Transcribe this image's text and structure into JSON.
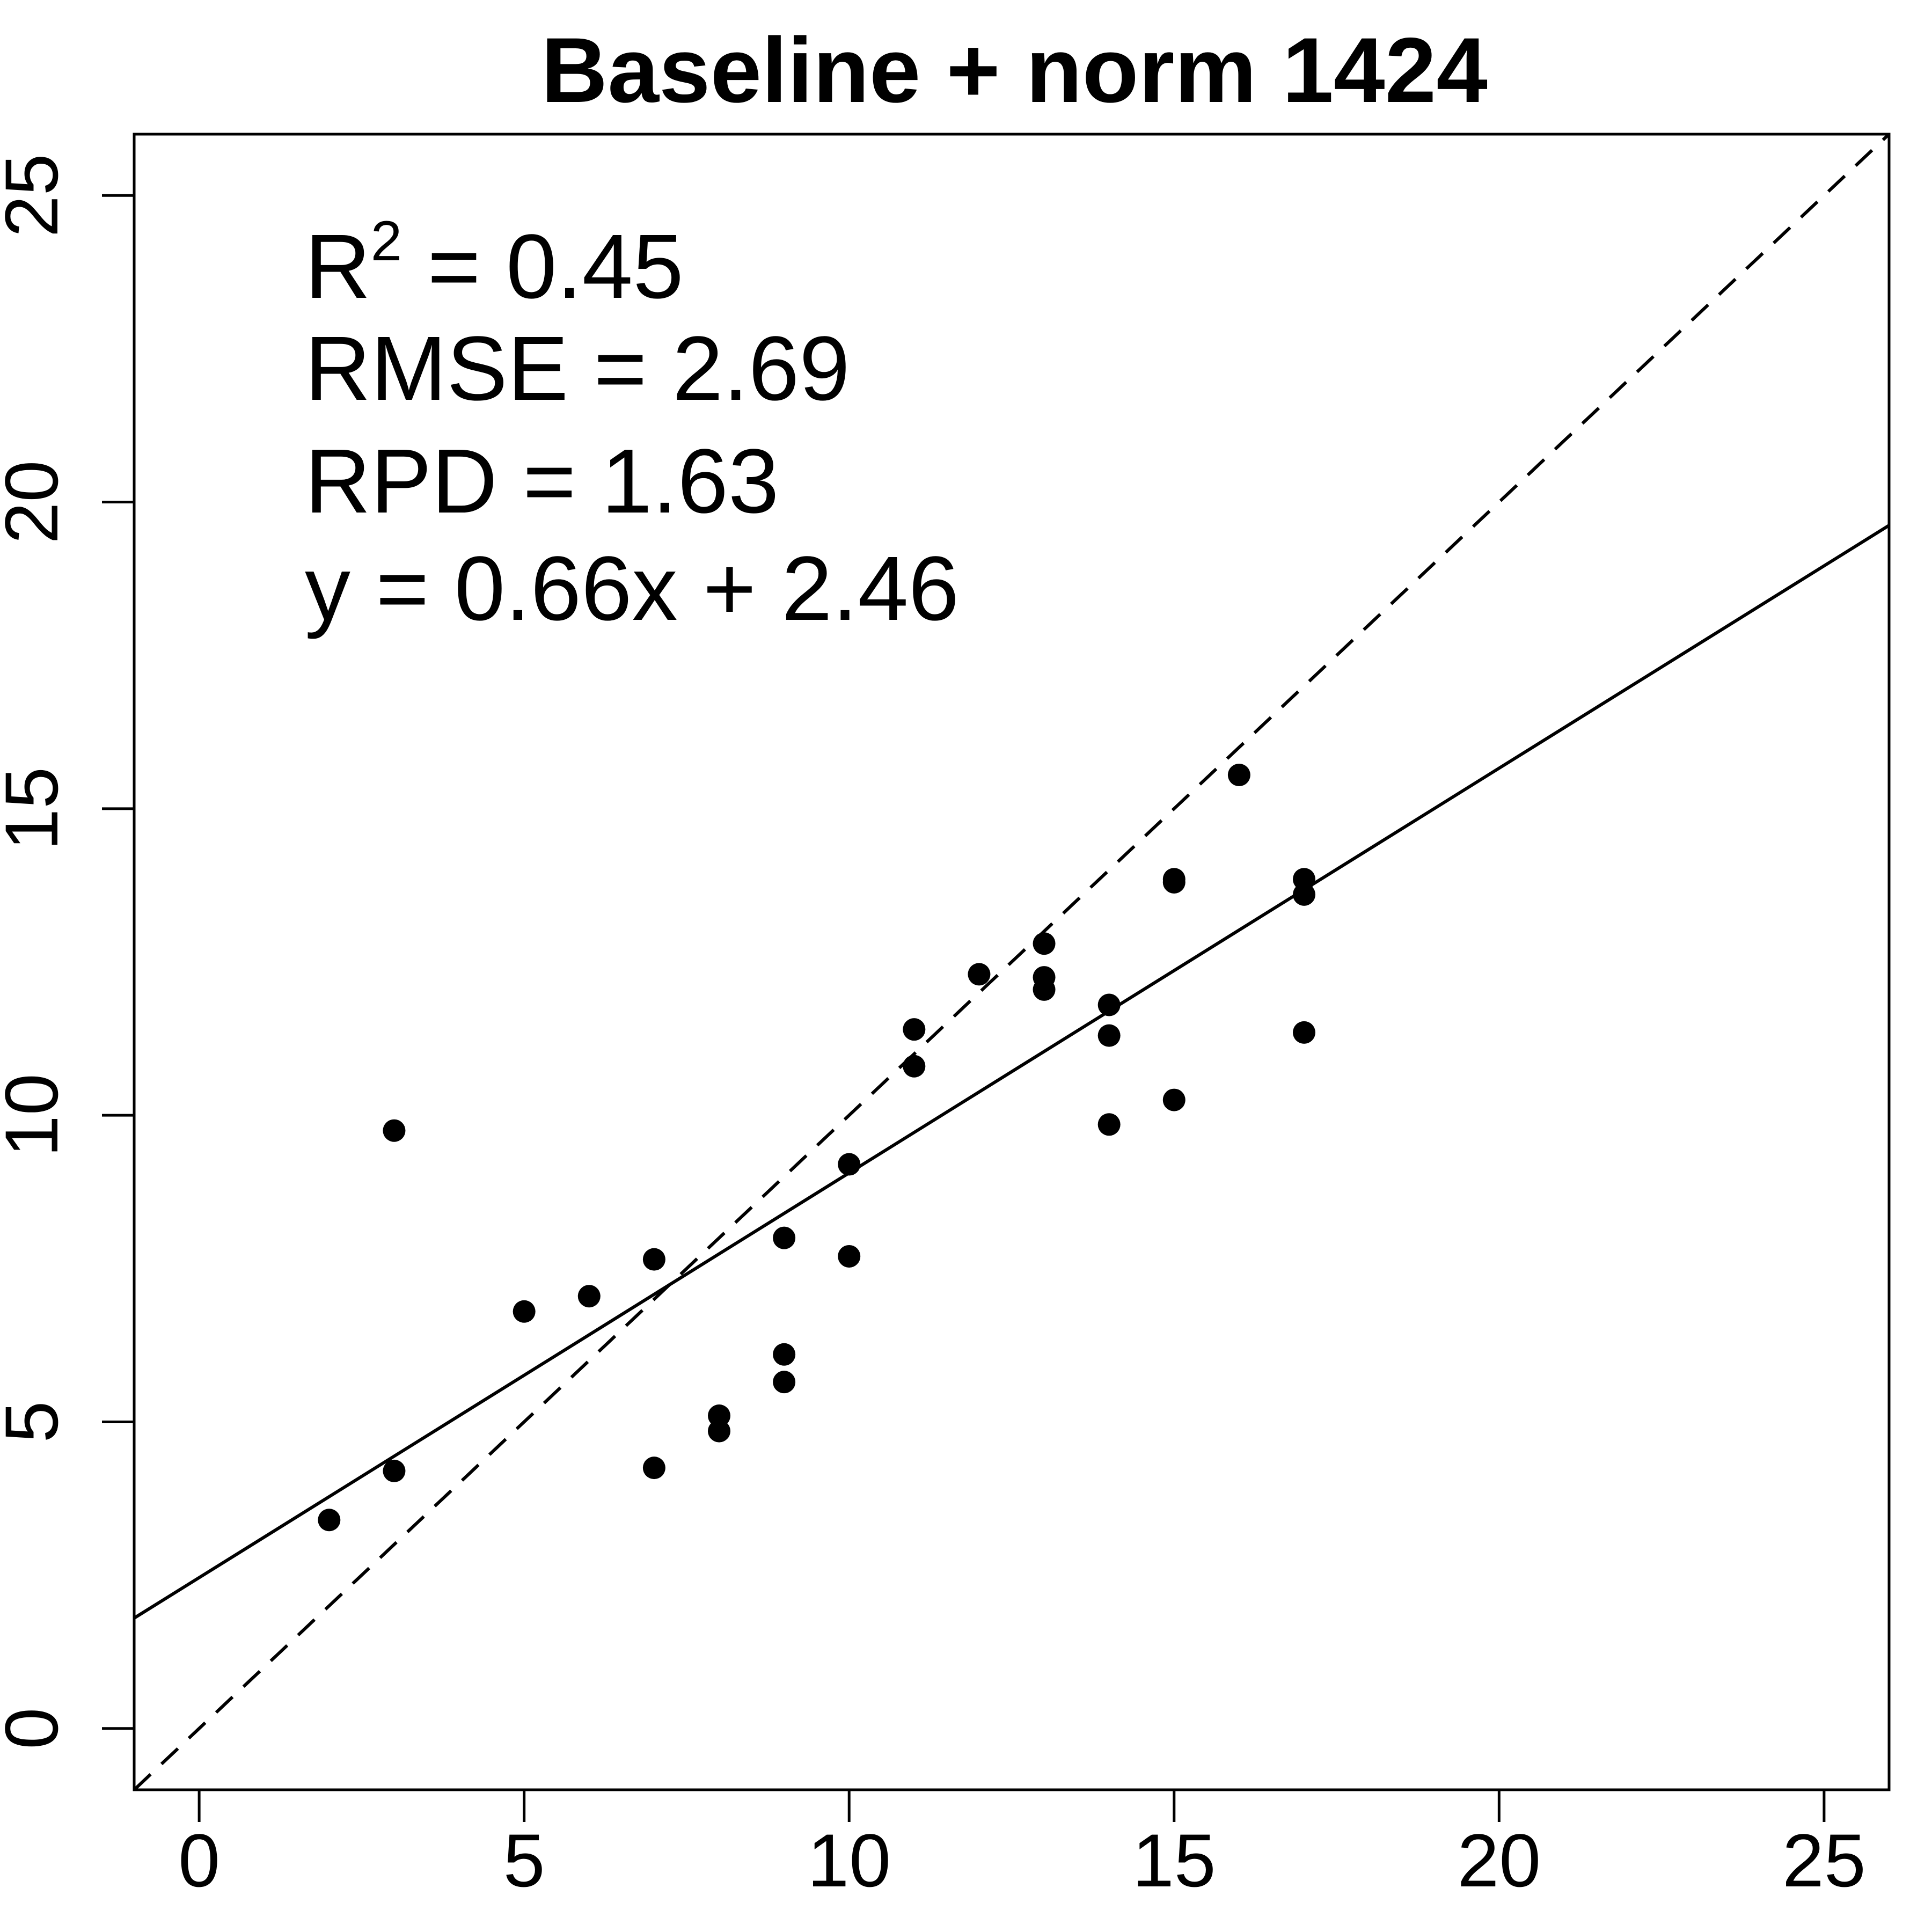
{
  "chart_data": {
    "type": "scatter",
    "title": "Baseline + norm 1424",
    "xlabel": "",
    "ylabel": "",
    "xlim": [
      -1,
      26
    ],
    "ylim": [
      -1,
      26
    ],
    "x_ticks": [
      0,
      5,
      10,
      15,
      20,
      25
    ],
    "y_ticks": [
      0,
      5,
      10,
      15,
      20,
      25
    ],
    "grid": false,
    "points": [
      {
        "x": 2,
        "y": 3.4
      },
      {
        "x": 3,
        "y": 9.75
      },
      {
        "x": 3,
        "y": 4.2
      },
      {
        "x": 5,
        "y": 6.8
      },
      {
        "x": 6,
        "y": 7.05
      },
      {
        "x": 7,
        "y": 7.65
      },
      {
        "x": 7,
        "y": 4.25
      },
      {
        "x": 8,
        "y": 5.1
      },
      {
        "x": 8,
        "y": 4.85
      },
      {
        "x": 9,
        "y": 8.0
      },
      {
        "x": 9,
        "y": 6.1
      },
      {
        "x": 9,
        "y": 5.65
      },
      {
        "x": 10,
        "y": 9.2
      },
      {
        "x": 10,
        "y": 7.7
      },
      {
        "x": 11,
        "y": 11.4
      },
      {
        "x": 11,
        "y": 10.8
      },
      {
        "x": 12,
        "y": 12.3
      },
      {
        "x": 13,
        "y": 12.8
      },
      {
        "x": 13,
        "y": 12.25
      },
      {
        "x": 13,
        "y": 12.05
      },
      {
        "x": 14,
        "y": 11.8
      },
      {
        "x": 14,
        "y": 11.3
      },
      {
        "x": 14,
        "y": 9.85
      },
      {
        "x": 15,
        "y": 13.85
      },
      {
        "x": 15,
        "y": 13.8
      },
      {
        "x": 15,
        "y": 10.25
      },
      {
        "x": 16,
        "y": 15.55
      },
      {
        "x": 17,
        "y": 13.85
      },
      {
        "x": 17,
        "y": 13.6
      },
      {
        "x": 17,
        "y": 11.35
      }
    ],
    "lines": [
      {
        "style": "solid",
        "slope": 0.66,
        "intercept": 2.46
      },
      {
        "style": "dashed",
        "slope": 1,
        "intercept": 0
      }
    ],
    "annotations": {
      "r2_label": "R",
      "r2_sup": "2",
      "r2_rest": " = 0.45",
      "rmse": "RMSE = 2.69",
      "rpd": "RPD = 1.63",
      "equation": "y = 0.66x + 2.46"
    }
  }
}
